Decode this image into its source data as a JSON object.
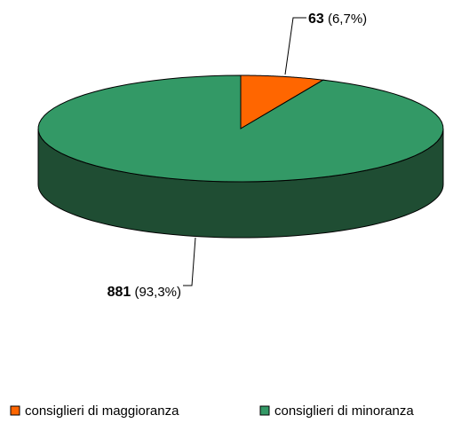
{
  "chart_data": {
    "type": "pie3d",
    "categories": [
      "consiglieri di maggioranza",
      "consiglieri di minoranza"
    ],
    "values": [
      63,
      881
    ],
    "percents": [
      6.7,
      93.3
    ],
    "percent_labels": [
      "(6,7%)",
      "(93,3%)"
    ],
    "colors": [
      "#ff6600",
      "#339966"
    ],
    "side_colors": [
      "#8c3800",
      "#1f4d33"
    ],
    "legend": "bottom"
  }
}
